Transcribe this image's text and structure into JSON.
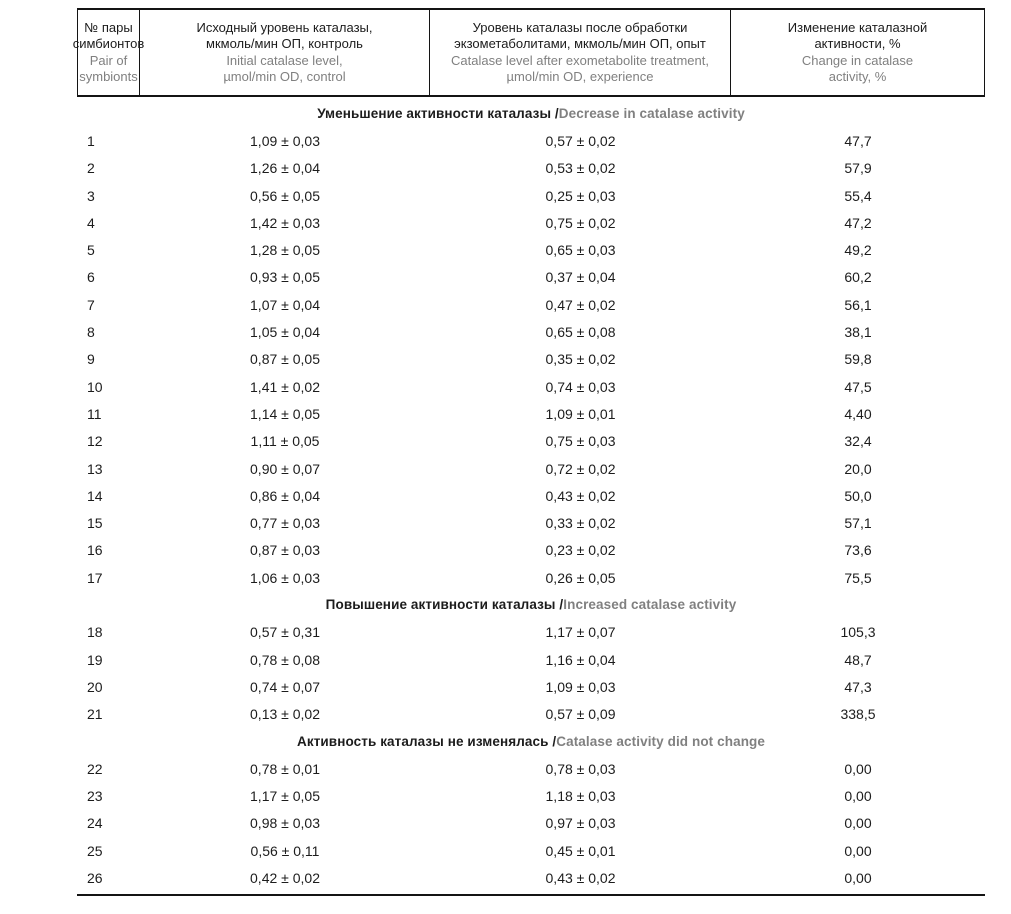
{
  "colors": {
    "text_primary": "#1c1c1c",
    "text_secondary": "#808080",
    "border": "#141414"
  },
  "table": {
    "columns": [
      {
        "ru": "№ пары\nсимбионтов",
        "en": "Pair of\nsymbionts"
      },
      {
        "ru": "Исходный уровень каталазы,\nмкмоль/мин ОП, контроль",
        "en": "Initial catalase level,\nµmol/min OD, control"
      },
      {
        "ru": "Уровень каталазы после обработки\nэкзометаболитами, мкмоль/мин ОП, опыт",
        "en": "Catalase level after exometabolite treatment,\nµmol/min OD, experience"
      },
      {
        "ru": "Изменение каталазной\nактивности, %",
        "en": "Change in catalase\nactivity, %"
      }
    ],
    "sections": [
      {
        "title_ru": "Уменьшение активности каталазы",
        "title_en": "Decrease in catalase activity",
        "rows": [
          {
            "n": "1",
            "control": "1,09 ± 0,03",
            "experiment": "0,57 ± 0,02",
            "change": "47,7"
          },
          {
            "n": "2",
            "control": "1,26 ± 0,04",
            "experiment": "0,53 ± 0,02",
            "change": "57,9"
          },
          {
            "n": "3",
            "control": "0,56 ± 0,05",
            "experiment": "0,25 ± 0,03",
            "change": "55,4"
          },
          {
            "n": "4",
            "control": "1,42 ± 0,03",
            "experiment": "0,75 ± 0,02",
            "change": "47,2"
          },
          {
            "n": "5",
            "control": "1,28 ± 0,05",
            "experiment": "0,65 ± 0,03",
            "change": "49,2"
          },
          {
            "n": "6",
            "control": "0,93 ± 0,05",
            "experiment": "0,37 ± 0,04",
            "change": "60,2"
          },
          {
            "n": "7",
            "control": "1,07 ± 0,04",
            "experiment": "0,47 ± 0,02",
            "change": "56,1"
          },
          {
            "n": "8",
            "control": "1,05 ± 0,04",
            "experiment": "0,65 ± 0,08",
            "change": "38,1"
          },
          {
            "n": "9",
            "control": "0,87 ± 0,05",
            "experiment": "0,35 ± 0,02",
            "change": "59,8"
          },
          {
            "n": "10",
            "control": "1,41 ± 0,02",
            "experiment": "0,74 ± 0,03",
            "change": "47,5"
          },
          {
            "n": "11",
            "control": "1,14 ± 0,05",
            "experiment": "1,09 ± 0,01",
            "change": "4,40"
          },
          {
            "n": "12",
            "control": "1,11 ± 0,05",
            "experiment": "0,75 ± 0,03",
            "change": "32,4"
          },
          {
            "n": "13",
            "control": "0,90 ± 0,07",
            "experiment": "0,72 ± 0,02",
            "change": "20,0"
          },
          {
            "n": "14",
            "control": "0,86 ± 0,04",
            "experiment": "0,43 ± 0,02",
            "change": "50,0"
          },
          {
            "n": "15",
            "control": "0,77 ± 0,03",
            "experiment": "0,33 ± 0,02",
            "change": "57,1"
          },
          {
            "n": "16",
            "control": "0,87 ± 0,03",
            "experiment": "0,23 ± 0,02",
            "change": "73,6"
          },
          {
            "n": "17",
            "control": "1,06 ± 0,03",
            "experiment": "0,26 ± 0,05",
            "change": "75,5"
          }
        ]
      },
      {
        "title_ru": "Повышение активности каталазы",
        "title_en": "Increased catalase activity",
        "rows": [
          {
            "n": "18",
            "control": "0,57 ± 0,31",
            "experiment": "1,17 ± 0,07",
            "change": "105,3"
          },
          {
            "n": "19",
            "control": "0,78 ± 0,08",
            "experiment": "1,16 ± 0,04",
            "change": "48,7"
          },
          {
            "n": "20",
            "control": "0,74 ± 0,07",
            "experiment": "1,09 ± 0,03",
            "change": "47,3"
          },
          {
            "n": "21",
            "control": "0,13 ± 0,02",
            "experiment": "0,57 ± 0,09",
            "change": "338,5"
          }
        ]
      },
      {
        "title_ru": "Активность каталазы не изменялась",
        "title_en": "Catalase activity did not change",
        "rows": [
          {
            "n": "22",
            "control": "0,78 ± 0,01",
            "experiment": "0,78 ± 0,03",
            "change": "0,00"
          },
          {
            "n": "23",
            "control": "1,17 ± 0,05",
            "experiment": "1,18 ± 0,03",
            "change": "0,00"
          },
          {
            "n": "24",
            "control": "0,98 ± 0,03",
            "experiment": "0,97 ± 0,03",
            "change": "0,00"
          },
          {
            "n": "25",
            "control": "0,56 ± 0,11",
            "experiment": "0,45 ± 0,01",
            "change": "0,00"
          },
          {
            "n": "26",
            "control": "0,42 ± 0,02",
            "experiment": "0,43 ± 0,02",
            "change": "0,00"
          }
        ]
      }
    ]
  }
}
